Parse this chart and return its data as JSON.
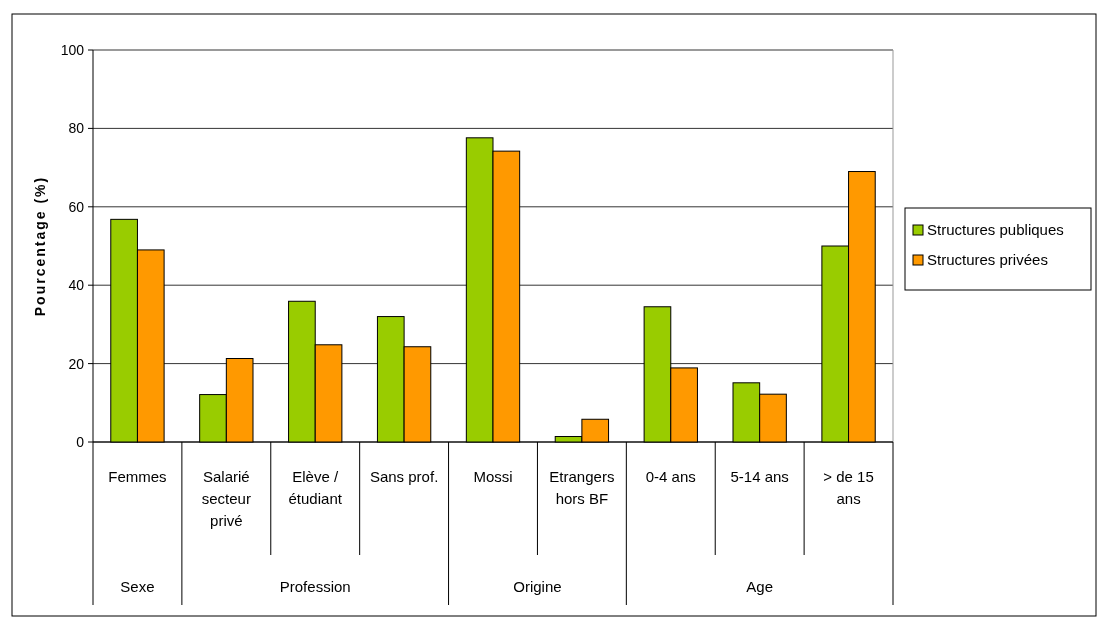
{
  "chart_data": {
    "type": "bar",
    "ylabel": "Pourcentage (%)",
    "categories": [
      "Femmes",
      "Salarié secteur privé",
      "Elève / étudiant",
      "Sans prof.",
      "Mossi",
      "Etrangers hors BF",
      "0-4 ans",
      "5-14 ans",
      "> de 15 ans"
    ],
    "series": [
      {
        "name": "Structures publiques",
        "color": "#99cc00",
        "values": [
          56.8,
          12.1,
          35.9,
          32.0,
          77.6,
          1.4,
          34.5,
          15.1,
          50.0
        ]
      },
      {
        "name": "Structures privées",
        "color": "#ff9900",
        "values": [
          49.0,
          21.3,
          24.8,
          24.3,
          74.2,
          5.8,
          18.9,
          12.2,
          69.0
        ]
      }
    ],
    "ylim": [
      0,
      100
    ],
    "yticks": [
      0,
      20,
      40,
      60,
      80,
      100
    ],
    "grid": "y",
    "legend": "right",
    "annotations": [
      "Sexe",
      "Profession",
      "Origine",
      "Age"
    ]
  }
}
